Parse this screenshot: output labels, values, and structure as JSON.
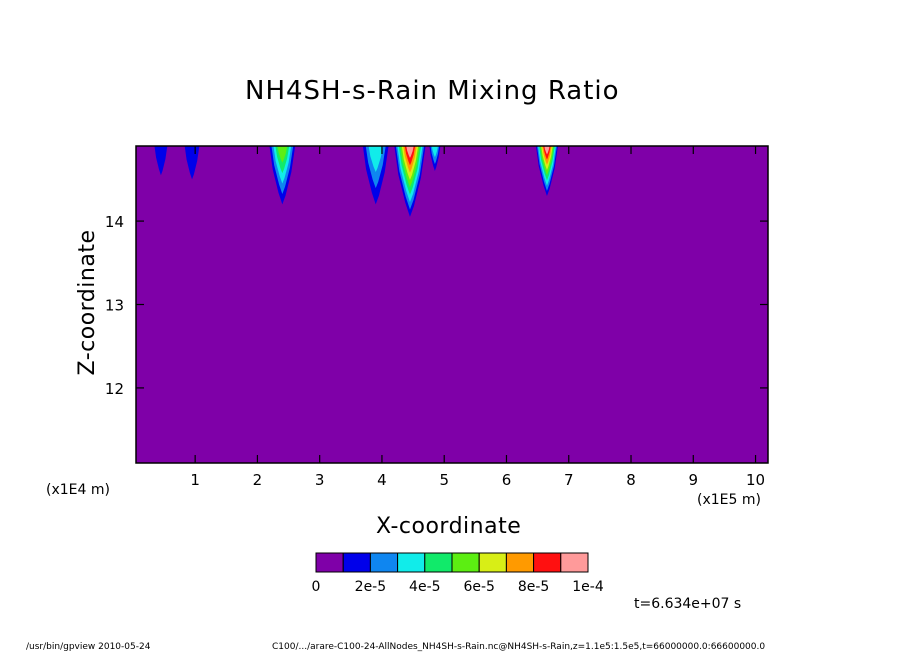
{
  "chart_data": {
    "type": "heatmap",
    "title": "NH4SH-s-Rain Mixing Ratio",
    "xlabel": "X-coordinate",
    "ylabel": "Z-coordinate",
    "x_ticks": [
      1,
      2,
      3,
      4,
      5,
      6,
      7,
      8,
      9,
      10
    ],
    "y_ticks": [
      12,
      13,
      14
    ],
    "xlim": [
      0.05,
      10.2
    ],
    "ylim": [
      11.1,
      14.9
    ],
    "x_scale_left": "(x1E4 m)",
    "x_scale_right": "(x1E5 m)",
    "colorbar": {
      "levels": [
        0,
        1e-05,
        2e-05,
        3e-05,
        4e-05,
        5e-05,
        6e-05,
        7e-05,
        8e-05,
        9e-05,
        0.0001
      ],
      "colors": [
        "#7f00a8",
        "#0000ea",
        "#0f86f0",
        "#11ecea",
        "#11ea6a",
        "#5cee12",
        "#d8ee16",
        "#ff9a00",
        "#ff1010",
        "#ff9a9a"
      ],
      "labels": [
        "0",
        "2e-5",
        "4e-5",
        "6e-5",
        "8e-5",
        "1e-4"
      ]
    },
    "background_value": 0,
    "features": [
      {
        "x": 0.45,
        "z_bottom": 14.55,
        "peak": 1.2e-05
      },
      {
        "x": 0.95,
        "z_bottom": 14.5,
        "peak": 1.2e-05
      },
      {
        "x": 2.4,
        "z_bottom": 14.2,
        "peak": 5e-05
      },
      {
        "x": 3.9,
        "z_bottom": 14.2,
        "peak": 3e-05
      },
      {
        "x": 4.45,
        "z_bottom": 14.05,
        "peak": 9e-05
      },
      {
        "x": 4.85,
        "z_bottom": 14.6,
        "peak": 3e-05
      },
      {
        "x": 6.65,
        "z_bottom": 14.3,
        "peak": 9e-05
      }
    ]
  },
  "time_label": "t=6.634e+07 s",
  "footer": {
    "left": "/usr/bin/gpview  2010-05-24",
    "right": "C100/.../arare-C100-24-AllNodes_NH4SH-s-Rain.nc@NH4SH-s-Rain,z=1.1e5:1.5e5,t=66000000.0:66600000.0"
  }
}
